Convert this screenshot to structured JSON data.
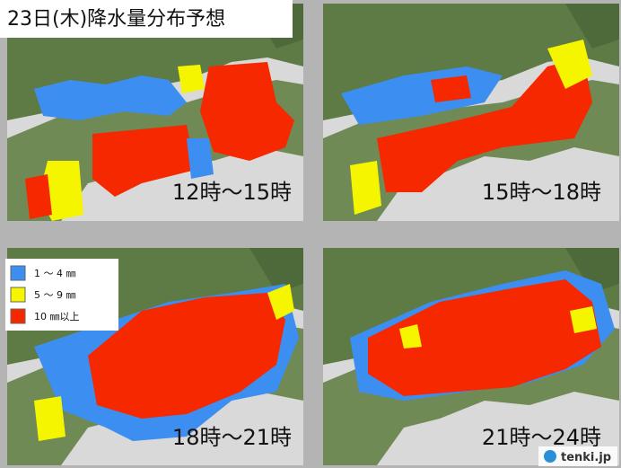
{
  "header": {
    "title": "23日(木)降水量分布予想"
  },
  "panels": [
    {
      "label": "12時～15時"
    },
    {
      "label": "15時～18時"
    },
    {
      "label": "18時～21時"
    },
    {
      "label": "21時～24時"
    }
  ],
  "legend": [
    {
      "label": "1 ～ 4 ㎜",
      "color": "#3c8ff0"
    },
    {
      "label": "5 ～ 9 ㎜",
      "color": "#f5f500"
    },
    {
      "label": "10 ㎜以上",
      "color": "#f52800"
    }
  ],
  "footer": {
    "brand": "tenki.jp"
  }
}
